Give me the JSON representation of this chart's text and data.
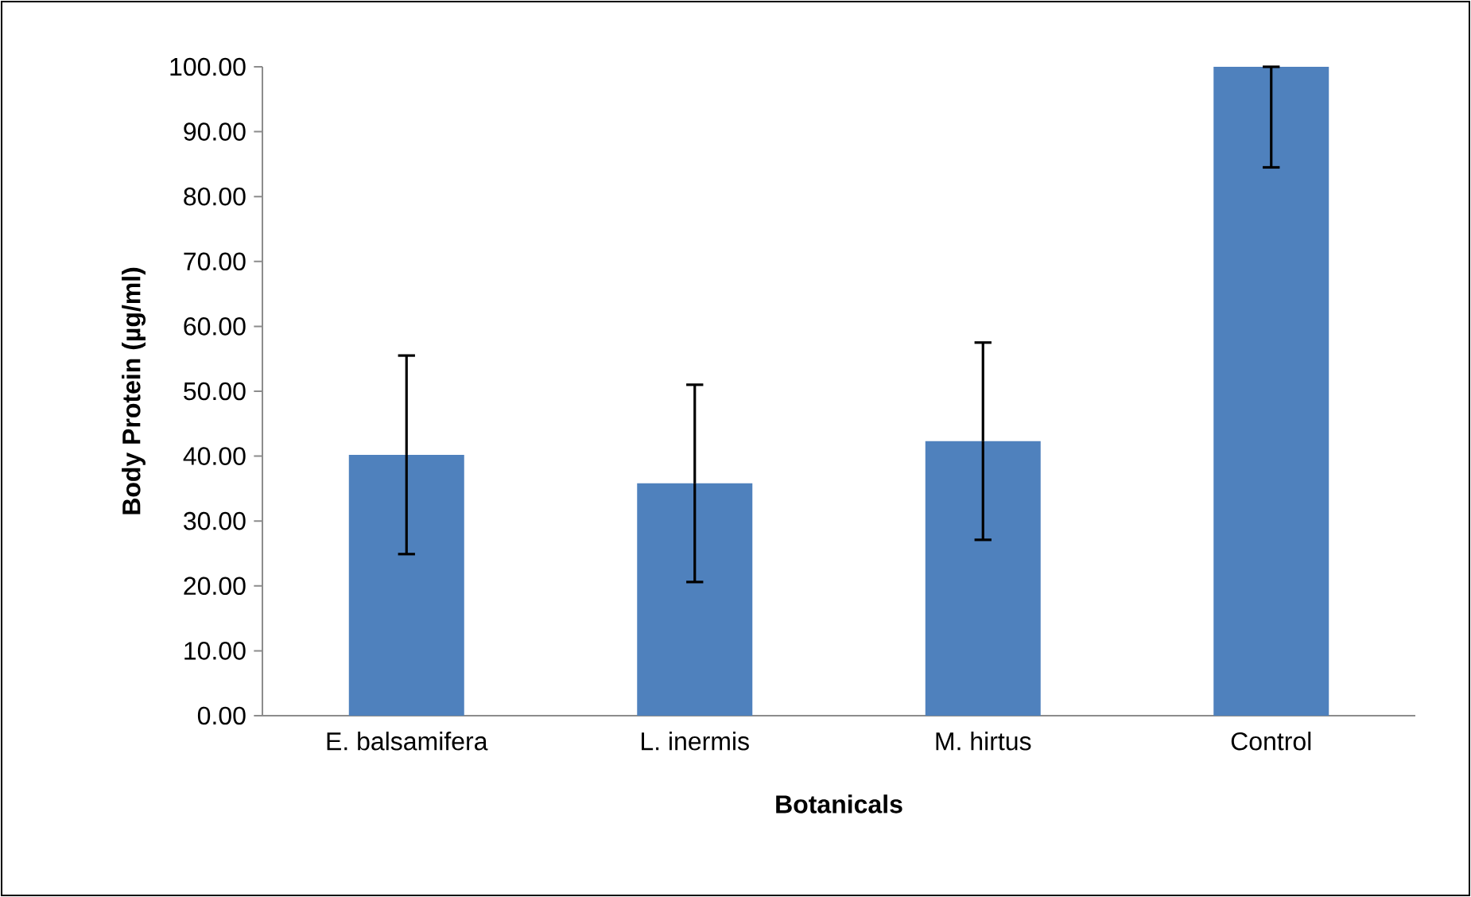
{
  "chart_data": {
    "type": "bar",
    "xlabel": "Botanicals",
    "ylabel": "Body Protein (µg/ml)",
    "categories": [
      "E. balsamifera",
      "L. inermis",
      "M. hirtus",
      "Control"
    ],
    "values": [
      40.2,
      35.8,
      42.3,
      100
    ],
    "errors": [
      15.3,
      15.2,
      15.2,
      [
        84.5,
        100
      ]
    ],
    "color": "#4f81bd",
    "ylim": [
      0,
      100
    ],
    "yticks": [
      {
        "value": 0,
        "label": "0.00"
      },
      {
        "value": 10,
        "label": "10.00"
      },
      {
        "value": 20,
        "label": "20.00"
      },
      {
        "value": 30,
        "label": "30.00"
      },
      {
        "value": 40,
        "label": "40.00"
      },
      {
        "value": 50,
        "label": "50.00"
      },
      {
        "value": 60,
        "label": "60.00"
      },
      {
        "value": 70,
        "label": "70.00"
      },
      {
        "value": 80,
        "label": "80.00"
      },
      {
        "value": 90,
        "label": "90.00"
      },
      {
        "value": 100,
        "label": "100.00"
      }
    ]
  }
}
